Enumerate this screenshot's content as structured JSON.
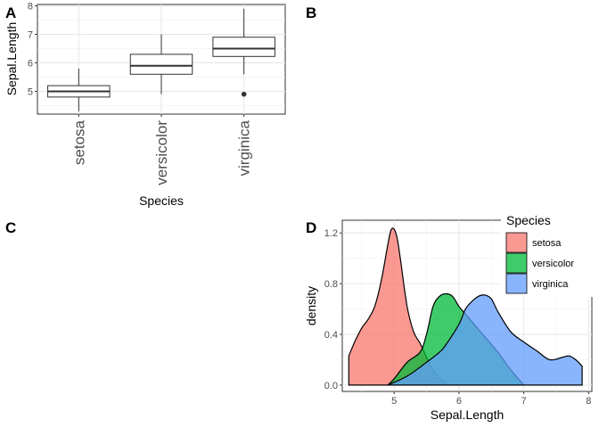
{
  "panels": {
    "A": "A",
    "B": "B",
    "C": "C",
    "D": "D"
  },
  "colors": {
    "setosa": "#F8766D",
    "versicolor": "#00BA38",
    "virginica": "#619CFF"
  },
  "chart_data": [
    {
      "panel": "A",
      "type": "box",
      "categories": [
        "setosa",
        "versicolor",
        "virginica"
      ],
      "xlabel": "Species",
      "ylabel": "Sepal.Length",
      "ylim": [
        4.2,
        8.05
      ],
      "yticks": [
        "5",
        "6",
        "7",
        "8"
      ],
      "grid": true,
      "boxes": [
        {
          "category": "setosa",
          "min": 4.3,
          "q1": 4.8,
          "median": 5.0,
          "q3": 5.2,
          "max": 5.8,
          "outliers": []
        },
        {
          "category": "versicolor",
          "min": 4.9,
          "q1": 5.6,
          "median": 5.9,
          "q3": 6.3,
          "max": 7.0,
          "outliers": []
        },
        {
          "category": "virginica",
          "min": 5.6,
          "q1": 6.225,
          "median": 6.5,
          "q3": 6.9,
          "max": 7.9,
          "outliers": [
            4.9
          ]
        }
      ]
    },
    {
      "panel": "D",
      "type": "area",
      "xlabel": "Sepal.Length",
      "ylabel": "density",
      "xlim": [
        4.2,
        8.05
      ],
      "ylim": [
        -0.05,
        1.3
      ],
      "xticks": [
        "5",
        "6",
        "7",
        "8"
      ],
      "yticks": [
        "0.0",
        "0.4",
        "0.8",
        "1.2"
      ],
      "grid": true,
      "legend": {
        "title": "Species",
        "placement": "top-right"
      },
      "series": [
        {
          "name": "setosa",
          "x": [
            4.3,
            4.4,
            4.5,
            4.6,
            4.7,
            4.8,
            4.9,
            4.95,
            5.0,
            5.05,
            5.1,
            5.2,
            5.3,
            5.4,
            5.5,
            5.6,
            5.7,
            5.8
          ],
          "y": [
            0.23,
            0.35,
            0.45,
            0.52,
            0.62,
            0.82,
            1.1,
            1.22,
            1.23,
            1.15,
            0.98,
            0.62,
            0.42,
            0.33,
            0.22,
            0.12,
            0.05,
            0.02
          ]
        },
        {
          "name": "versicolor",
          "x": [
            4.9,
            5.0,
            5.2,
            5.4,
            5.5,
            5.6,
            5.7,
            5.8,
            5.9,
            6.0,
            6.1,
            6.2,
            6.4,
            6.6,
            6.8,
            7.0
          ],
          "y": [
            0.0,
            0.05,
            0.18,
            0.26,
            0.4,
            0.62,
            0.7,
            0.72,
            0.7,
            0.62,
            0.56,
            0.5,
            0.38,
            0.26,
            0.12,
            0.0
          ]
        },
        {
          "name": "virginica",
          "x": [
            4.9,
            5.2,
            5.5,
            5.7,
            5.8,
            6.0,
            6.1,
            6.2,
            6.3,
            6.4,
            6.5,
            6.6,
            6.8,
            7.0,
            7.2,
            7.4,
            7.6,
            7.7,
            7.8,
            7.9
          ],
          "y": [
            0.0,
            0.07,
            0.18,
            0.26,
            0.32,
            0.48,
            0.6,
            0.66,
            0.7,
            0.71,
            0.68,
            0.58,
            0.42,
            0.34,
            0.27,
            0.2,
            0.22,
            0.23,
            0.2,
            0.15
          ]
        }
      ]
    }
  ]
}
